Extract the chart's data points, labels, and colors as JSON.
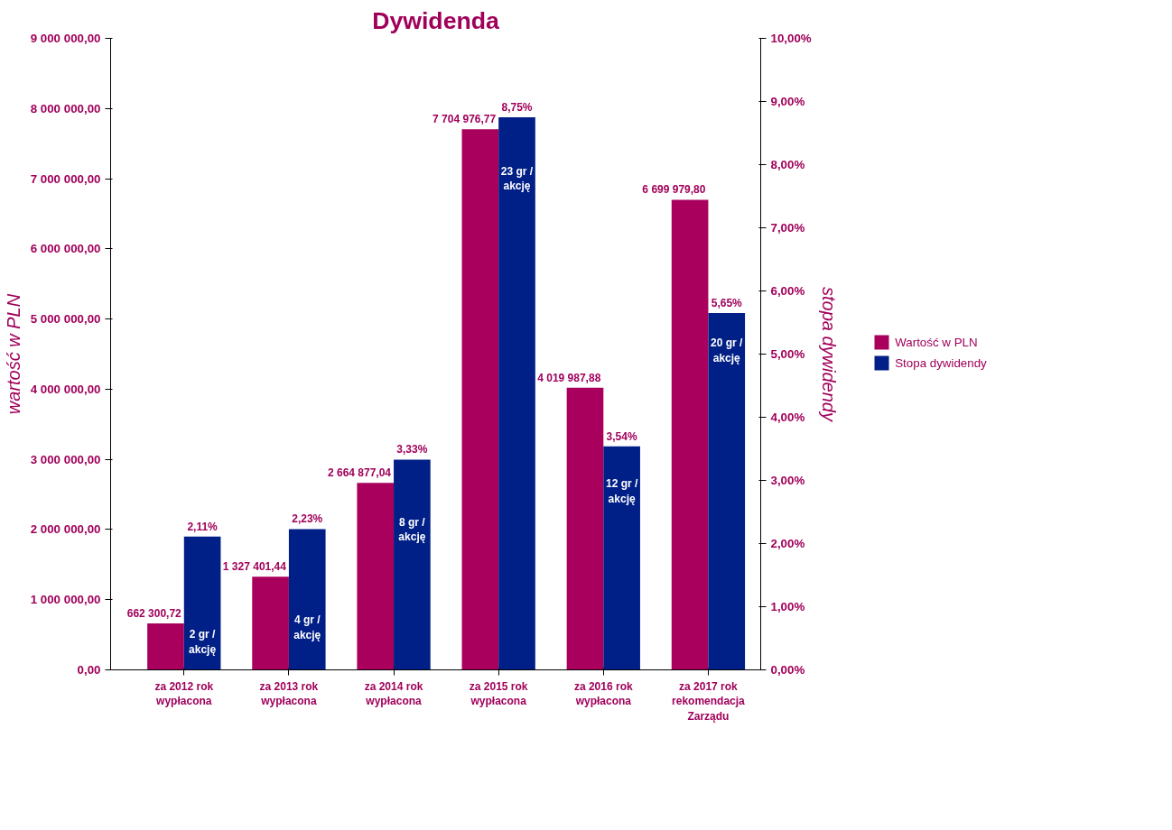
{
  "chart_data": {
    "type": "bar",
    "title": "Dywidenda",
    "ylabel": "wartość w PLN",
    "y2label": "stopa dywidendy",
    "categories": [
      "za 2012 rok\nwypłacona",
      "za 2013 rok\nwypłacona",
      "za 2014 rok\nwypłacona",
      "za 2015 rok\nwypłacona",
      "za 2016 rok\nwypłacona",
      "za 2017 rok\nrekomendacja\nZarządu"
    ],
    "series": [
      {
        "name": "Wartość w PLN",
        "color": "#a8005c",
        "values": [
          662300.72,
          1327401.44,
          2664877.04,
          7704976.77,
          4019987.88,
          6699979.8
        ],
        "value_labels": [
          "662 300,72",
          "1 327 401,44",
          "2 664 877,04",
          "7 704 976,77",
          "4 019 987,88",
          "6 699 979,80"
        ]
      },
      {
        "name": "Stopa dywidendy",
        "color": "#001f87",
        "axis": "y2",
        "values": [
          2.11,
          2.23,
          3.33,
          8.75,
          3.54,
          5.65
        ],
        "value_labels": [
          "2,11%",
          "2,23%",
          "3,33%",
          "8,75%",
          "3,54%",
          "5,65%"
        ]
      }
    ],
    "ylim": [
      0,
      9000000
    ],
    "yticks": [
      {
        "value": 0,
        "label": "0,00"
      },
      {
        "value": 1000000,
        "label": "1 000 000,00"
      },
      {
        "value": 2000000,
        "label": "2 000 000,00"
      },
      {
        "value": 3000000,
        "label": "3 000 000,00"
      },
      {
        "value": 4000000,
        "label": "4 000 000,00"
      },
      {
        "value": 5000000,
        "label": "5 000 000,00"
      },
      {
        "value": 6000000,
        "label": "6 000 000,00"
      },
      {
        "value": 7000000,
        "label": "7 000 000,00"
      },
      {
        "value": 8000000,
        "label": "8 000 000,00"
      },
      {
        "value": 9000000,
        "label": "9 000 000,00"
      }
    ],
    "y2lim": [
      0,
      10
    ],
    "y2ticks": [
      {
        "value": 0,
        "label": "0,00%"
      },
      {
        "value": 1,
        "label": "1,00%"
      },
      {
        "value": 2,
        "label": "2,00%"
      },
      {
        "value": 3,
        "label": "3,00%"
      },
      {
        "value": 4,
        "label": "4,00%"
      },
      {
        "value": 5,
        "label": "5,00%"
      },
      {
        "value": 6,
        "label": "6,00%"
      },
      {
        "value": 7,
        "label": "7,00%"
      },
      {
        "value": 8,
        "label": "8,00%"
      },
      {
        "value": 9,
        "label": "9,00%"
      },
      {
        "value": 10,
        "label": "10,00%"
      }
    ],
    "annotations": [
      {
        "text": "2 gr /\nakcję",
        "x": "za 2012 rok\nwypłacona",
        "y": 400000
      },
      {
        "text": "4 gr /\nakcję",
        "x": "za 2013 rok\nwypłacona",
        "y": 600000
      },
      {
        "text": "8 gr /\nakcję",
        "x": "za 2014 rok\nwypłacona",
        "y": 2000000
      },
      {
        "text": "23 gr /\nakcję",
        "x": "za 2015 rok\nwypłacona",
        "y": 7000000
      },
      {
        "text": "12 gr /\nakcję",
        "x": "za 2016 rok\nwypłacona",
        "y": 2550000
      },
      {
        "text": "20 gr /\nakcję",
        "x": "za 2017 rok\nrekomendacja\nZarządu",
        "y": 4550000
      }
    ],
    "grid": false,
    "legend": "right"
  }
}
